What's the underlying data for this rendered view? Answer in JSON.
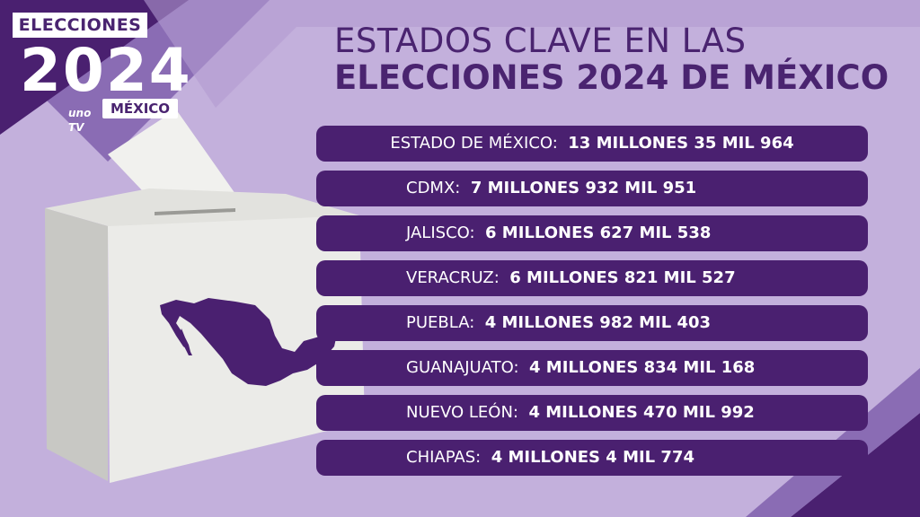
{
  "logo": {
    "top_text": "ELECCIONES",
    "year": "2024",
    "brand": "uno TV",
    "country": "MÉXICO"
  },
  "title": {
    "line1": "ESTADOS CLAVE EN LAS",
    "line2": "ELECCIONES 2024 DE MÉXICO"
  },
  "states": [
    {
      "label": "ESTADO DE MÉXICO:",
      "value": "13 MILLONES 35 MIL 964"
    },
    {
      "label": "CDMX:",
      "value": "7 MILLONES 932 MIL 951"
    },
    {
      "label": "JALISCO:",
      "value": "6 MILLONES 627 MIL 538"
    },
    {
      "label": "VERACRUZ:",
      "value": "6 MILLONES 821 MIL 527"
    },
    {
      "label": "PUEBLA:",
      "value": "4 MILLONES 982 MIL 403"
    },
    {
      "label": "GUANAJUATO:",
      "value": "4 MILLONES 834 MIL 168"
    },
    {
      "label": "NUEVO LEÓN:",
      "value": "4 MILLONES 470 MIL 992"
    },
    {
      "label": "CHIAPAS:",
      "value": "4 MILLONES 4 MIL 774"
    }
  ],
  "colors": {
    "background": "#c3b0dc",
    "dark_purple": "#4a2070",
    "mid_purple": "#8a6cb4",
    "box_face": "#ececec",
    "text_light": "#ffffff"
  },
  "icons": {
    "ballot_box": "ballot-box-icon",
    "map": "mexico-map-icon"
  }
}
